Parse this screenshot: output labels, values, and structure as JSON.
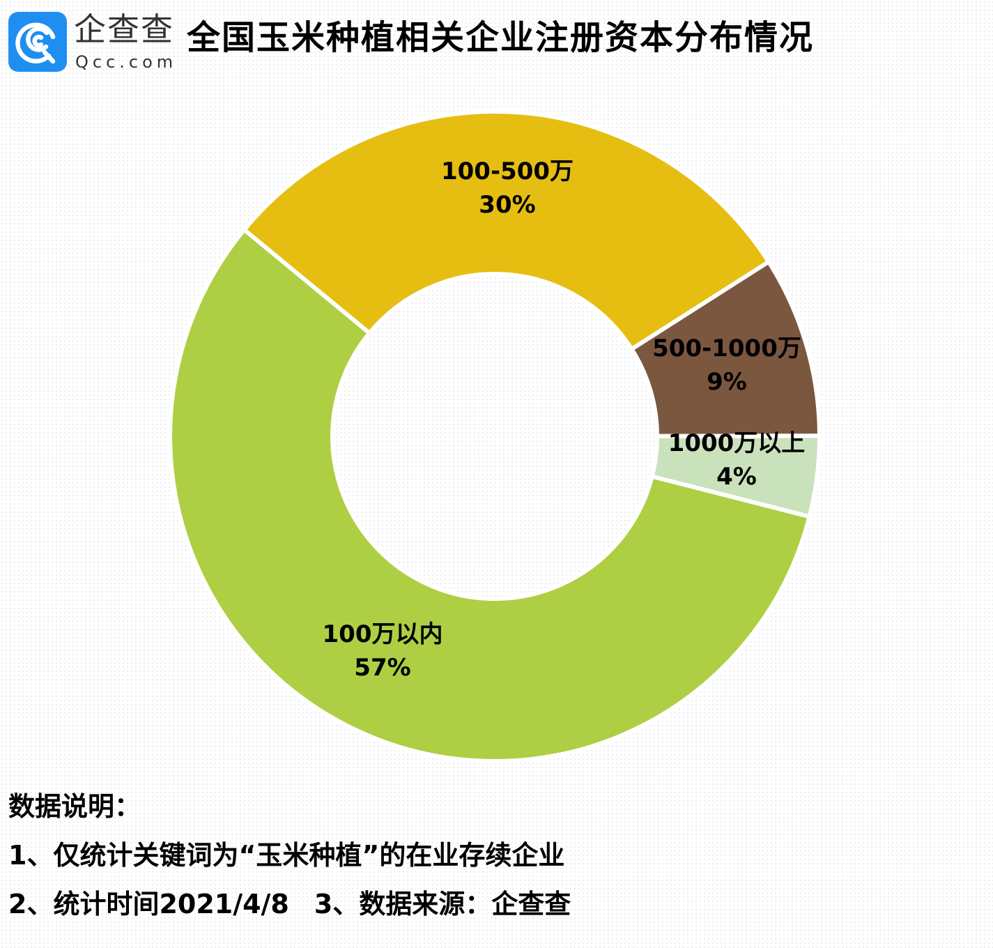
{
  "logo": {
    "icon": "qcc-logo-icon",
    "name_cn": "企查查",
    "name_en": "Qcc.com",
    "brand_color": "#1f8ef1"
  },
  "header": {
    "title": "全国玉米种植相关企业注册资本分布情况"
  },
  "chart_data": {
    "type": "pie",
    "subtype": "donut",
    "title": "全国玉米种植相关企业注册资本分布情况",
    "start_angle_deg": -50.5,
    "direction": "clockwise",
    "inner_radius_ratio": 0.5,
    "categories": [
      "100-500万",
      "500-1000万",
      "1000万以上",
      "100万以内"
    ],
    "values": [
      30,
      9,
      4,
      57
    ],
    "unit": "%",
    "colors": [
      "#E6BE12",
      "#7B5740",
      "#C9E2BC",
      "#AECF43"
    ],
    "labels": [
      {
        "name": "100-500万",
        "pct": "30%"
      },
      {
        "name": "500-1000万",
        "pct": "9%"
      },
      {
        "name": "1000万以上",
        "pct": "4%"
      },
      {
        "name": "100万以内",
        "pct": "57%"
      }
    ],
    "legend": "none (inline labels)"
  },
  "notes": {
    "heading": "数据说明：",
    "line1": "1、仅统计关键词为“玉米种植”的在业存续企业",
    "line2a": "2、统计时间2021/4/8",
    "line2b": "3、数据来源：企查查"
  }
}
